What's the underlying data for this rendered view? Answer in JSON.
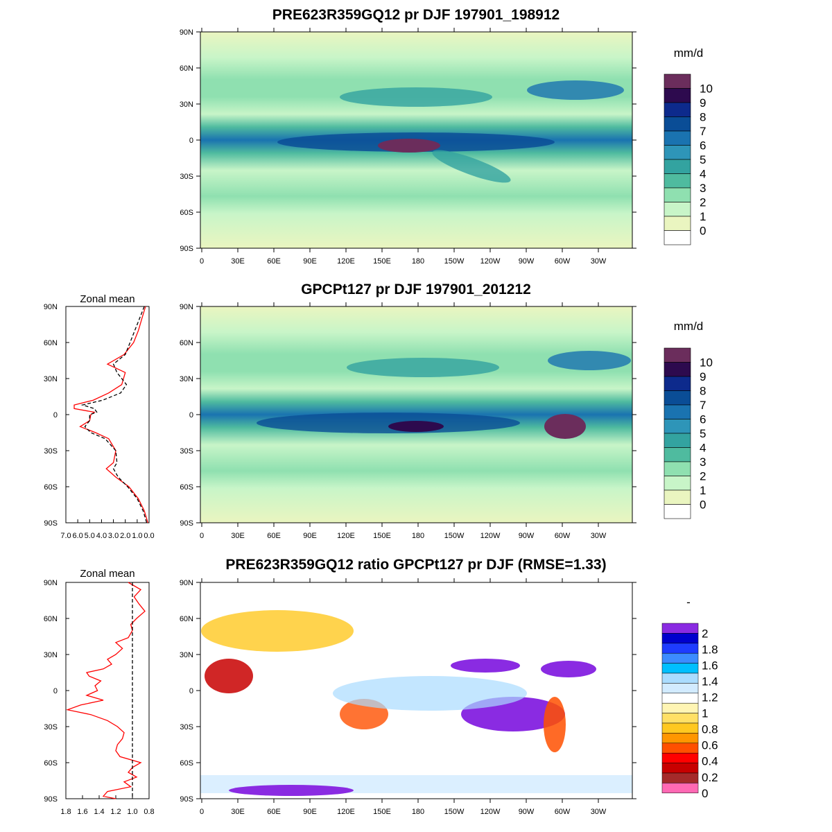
{
  "panels": [
    {
      "title": "PRE623R359GQ12 pr DJF 197901_198912",
      "units": "mm/d"
    },
    {
      "title": "GPCPt127 pr DJF 197901_201212",
      "units": "mm/d"
    },
    {
      "title": "PRE623R359GQ12 ratio GPCPt127 pr DJF (RMSE=1.33)",
      "units": "-"
    }
  ],
  "map_axes": {
    "lat_labels": [
      "90N",
      "60N",
      "30N",
      "0",
      "30S",
      "60S",
      "90S"
    ],
    "lon_labels": [
      "0",
      "30E",
      "60E",
      "90E",
      "120E",
      "150E",
      "180",
      "150W",
      "120W",
      "90W",
      "60W",
      "30W"
    ]
  },
  "zonal_panels": [
    {
      "title": "Zonal mean",
      "x_tick_labels": [
        "7.0",
        "6.0",
        "5.0",
        "4.0",
        "3.0",
        "2.0",
        "1.0",
        "0.0"
      ]
    },
    {
      "title": "Zonal mean",
      "x_tick_labels": [
        "1.8",
        "1.6",
        "1.4",
        "1.2",
        "1.0",
        "0.8"
      ]
    }
  ],
  "legend_pr": {
    "labels": [
      "10",
      "9",
      "8",
      "7",
      "6",
      "5",
      "4",
      "3",
      "2",
      "1",
      "0"
    ],
    "colors": [
      "#6b2d5c",
      "#2d0a4e",
      "#0d2a8c",
      "#0a4d96",
      "#1a73b0",
      "#2e95b8",
      "#33a3a0",
      "#4fbb9f",
      "#8fe0b0",
      "#c8f5c8",
      "#eaf5c0",
      "#ffffff"
    ]
  },
  "legend_ratio": {
    "labels": [
      "2",
      "1.8",
      "1.6",
      "1.4",
      "1.2",
      "1",
      "0.8",
      "0.6",
      "0.4",
      "0.2",
      "0"
    ],
    "colors": [
      "#8a2be2",
      "#0000cd",
      "#1e3cff",
      "#3c8cff",
      "#00bfff",
      "#aadcff",
      "#d2ebff",
      "#ffffff",
      "#fff5b4",
      "#ffe066",
      "#ffc820",
      "#ff9600",
      "#ff5000",
      "#ff0000",
      "#c80000",
      "#a52a2a",
      "#ff69b4"
    ]
  },
  "chart_data": [
    {
      "type": "heatmap",
      "title": "PRE623R359GQ12 pr DJF 197901_198912",
      "colorbar_label": "mm/d",
      "levels": [
        0,
        1,
        2,
        3,
        4,
        5,
        6,
        7,
        8,
        9,
        10
      ],
      "xlim": [
        0,
        360
      ],
      "ylim": [
        -90,
        90
      ]
    },
    {
      "type": "heatmap",
      "title": "GPCPt127 pr DJF 197901_201212",
      "colorbar_label": "mm/d",
      "levels": [
        0,
        1,
        2,
        3,
        4,
        5,
        6,
        7,
        8,
        9,
        10
      ],
      "xlim": [
        0,
        360
      ],
      "ylim": [
        -90,
        90
      ]
    },
    {
      "type": "heatmap",
      "title": "PRE623R359GQ12 ratio GPCPt127 pr DJF (RMSE=1.33)",
      "colorbar_label": "-",
      "levels": [
        0,
        0.2,
        0.4,
        0.6,
        0.8,
        1,
        1.2,
        1.4,
        1.6,
        1.8,
        2
      ],
      "rmse": 1.33,
      "xlim": [
        0,
        360
      ],
      "ylim": [
        -90,
        90
      ]
    },
    {
      "type": "line",
      "title": "Zonal mean",
      "xlim": [
        7.0,
        0.0
      ],
      "ylim": [
        -90,
        90
      ],
      "series": [
        {
          "color": "#ff0000",
          "dash": false,
          "lat": [
            90,
            80,
            70,
            60,
            50,
            42,
            35,
            25,
            18,
            12,
            8,
            5,
            2,
            0,
            -5,
            -10,
            -15,
            -20,
            -30,
            -40,
            -45,
            -52,
            -60,
            -70,
            -80,
            -90
          ],
          "values": [
            0.3,
            0.6,
            0.9,
            1.3,
            2.1,
            3.5,
            2.0,
            2.3,
            3.4,
            4.7,
            6.3,
            6.3,
            4.6,
            4.9,
            5.0,
            5.8,
            4.5,
            3.4,
            2.8,
            3.0,
            3.6,
            2.8,
            1.7,
            0.9,
            0.4,
            0.1
          ]
        },
        {
          "color": "#000000",
          "dash": true,
          "lat": [
            90,
            80,
            70,
            60,
            50,
            42,
            35,
            25,
            18,
            12,
            8,
            5,
            2,
            0,
            -5,
            -10,
            -15,
            -20,
            -30,
            -40,
            -45,
            -52,
            -60,
            -70,
            -80,
            -90
          ],
          "values": [
            0.4,
            0.8,
            1.2,
            1.6,
            2.0,
            3.0,
            2.7,
            1.9,
            2.4,
            3.9,
            5.6,
            4.6,
            4.4,
            5.0,
            5.0,
            5.4,
            4.9,
            3.7,
            2.8,
            2.7,
            3.0,
            2.6,
            1.8,
            1.0,
            0.5,
            0.2
          ]
        }
      ]
    },
    {
      "type": "line",
      "title": "Zonal mean",
      "xlim": [
        1.8,
        0.8
      ],
      "ylim": [
        -90,
        90
      ],
      "series": [
        {
          "color": "#ff0000",
          "dash": false,
          "lat": [
            90,
            84,
            78,
            72,
            66,
            60,
            55,
            50,
            44,
            40,
            35,
            30,
            26,
            22,
            18,
            15,
            12,
            8,
            4,
            0,
            -4,
            -8,
            -12,
            -16,
            -20,
            -25,
            -30,
            -35,
            -40,
            -45,
            -50,
            -55,
            -60,
            -64,
            -68,
            -72,
            -76,
            -80,
            -84,
            -88,
            -90
          ],
          "values": [
            1.05,
            0.9,
            0.98,
            0.92,
            0.85,
            0.95,
            1.02,
            1.0,
            1.05,
            1.2,
            1.12,
            1.2,
            1.3,
            1.25,
            1.35,
            1.55,
            1.52,
            1.38,
            1.45,
            1.42,
            1.55,
            1.35,
            1.62,
            1.78,
            1.5,
            1.3,
            1.18,
            1.1,
            1.12,
            1.18,
            1.2,
            1.15,
            0.9,
            1.0,
            1.05,
            0.95,
            1.1,
            1.02,
            1.3,
            1.35,
            1.2
          ]
        },
        {
          "color": "#000000",
          "dash": true,
          "lat": [
            90,
            -90
          ],
          "values": [
            1.0,
            1.0
          ]
        }
      ]
    }
  ]
}
